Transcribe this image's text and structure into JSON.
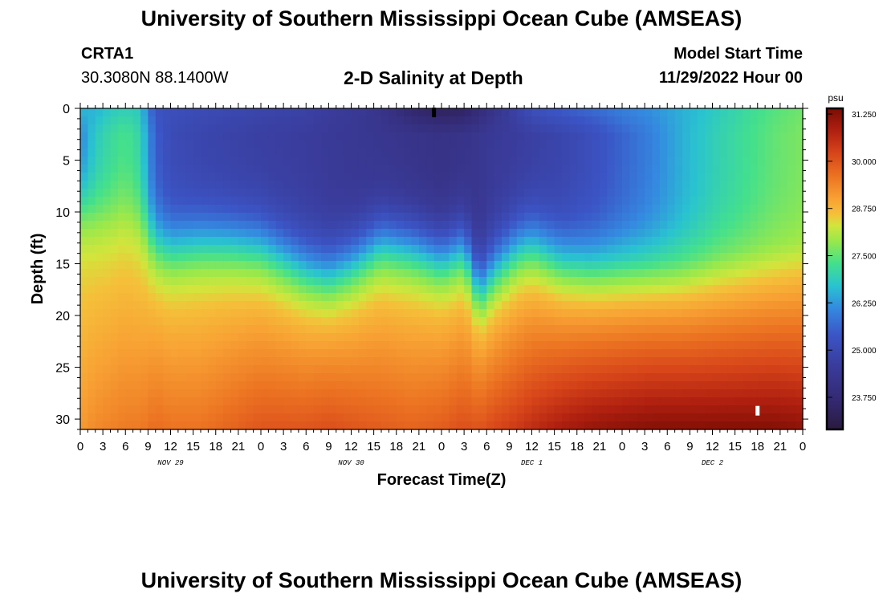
{
  "header": {
    "title": "University of Southern Mississippi Ocean Cube (AMSEAS)",
    "station": "CRTA1",
    "coordinates": "30.3080N  88.1400W",
    "plot_title": "2-D Salinity at Depth",
    "model_start_label": "Model Start Time",
    "model_start_value": "11/29/2022 Hour 00"
  },
  "footer": {
    "title": "University of Southern Mississippi Ocean Cube (AMSEAS)"
  },
  "chart_data": {
    "type": "heatmap",
    "title": "2-D Salinity at Depth",
    "xlabel": "Forecast Time(Z)",
    "ylabel": "Depth (ft)",
    "x_unit": "hours since 11/29/2022 00Z",
    "xlim": [
      0,
      96
    ],
    "ylim": [
      31,
      0
    ],
    "x_ticks": [
      0,
      3,
      6,
      9,
      12,
      15,
      18,
      21,
      24,
      27,
      30,
      33,
      36,
      39,
      42,
      45,
      48,
      51,
      54,
      57,
      60,
      63,
      66,
      69,
      72,
      75,
      78,
      81,
      84,
      87,
      90,
      93,
      96
    ],
    "x_tick_labels": [
      "0",
      "3",
      "6",
      "9",
      "12",
      "15",
      "18",
      "21",
      "0",
      "3",
      "6",
      "9",
      "12",
      "15",
      "18",
      "21",
      "0",
      "3",
      "6",
      "9",
      "12",
      "15",
      "18",
      "21",
      "0",
      "3",
      "6",
      "9",
      "12",
      "15",
      "18",
      "21",
      "0"
    ],
    "y_ticks": [
      0,
      5,
      10,
      15,
      20,
      25,
      30
    ],
    "y_tick_labels": [
      "0",
      "5",
      "10",
      "15",
      "20",
      "25",
      "30"
    ],
    "date_labels": [
      {
        "hour": 12,
        "text": "NOV 29"
      },
      {
        "hour": 36,
        "text": "NOV 30"
      },
      {
        "hour": 60,
        "text": "DEC 1"
      },
      {
        "hour": 84,
        "text": "DEC 2"
      }
    ],
    "colorbar": {
      "unit": "psu",
      "min": 22.9,
      "max": 31.4,
      "tick_values": [
        31.25,
        30.0,
        28.75,
        27.5,
        26.25,
        25.0,
        23.75
      ],
      "tick_labels": [
        "31.250",
        "30.000",
        "28.750",
        "27.500",
        "26.250",
        "25.000",
        "23.750"
      ],
      "colors": [
        {
          "value": 22.9,
          "color": "#2a1a3e"
        },
        {
          "value": 23.6,
          "color": "#33286e"
        },
        {
          "value": 24.6,
          "color": "#3a3c9c"
        },
        {
          "value": 25.4,
          "color": "#3b55c6"
        },
        {
          "value": 26.1,
          "color": "#3489e0"
        },
        {
          "value": 26.7,
          "color": "#29c3d0"
        },
        {
          "value": 27.3,
          "color": "#44e08c"
        },
        {
          "value": 27.9,
          "color": "#9ae84a"
        },
        {
          "value": 28.3,
          "color": "#d2e53c"
        },
        {
          "value": 28.6,
          "color": "#f5c03a"
        },
        {
          "value": 29.0,
          "color": "#f8a234"
        },
        {
          "value": 29.6,
          "color": "#ec7322"
        },
        {
          "value": 30.2,
          "color": "#d8461a"
        },
        {
          "value": 30.8,
          "color": "#b02010"
        },
        {
          "value": 31.4,
          "color": "#7a0d04"
        }
      ]
    },
    "profile_hours": [
      0,
      2,
      4,
      6,
      8,
      9,
      10,
      12,
      16,
      20,
      24,
      30,
      33,
      36,
      40,
      44,
      48,
      51,
      53,
      55,
      58,
      60,
      64,
      68,
      72,
      76,
      80,
      84,
      88,
      92,
      96
    ],
    "surface_salinity": [
      26.6,
      26.5,
      26.8,
      26.9,
      26.8,
      25.9,
      25.3,
      25.2,
      25.1,
      25.0,
      24.9,
      24.8,
      24.6,
      24.5,
      24.2,
      23.6,
      23.3,
      23.4,
      23.8,
      24.2,
      24.8,
      25.2,
      25.5,
      25.7,
      26.0,
      26.2,
      26.5,
      26.8,
      27.1,
      27.4,
      27.6
    ],
    "upper_salinity": [
      26.0,
      26.8,
      27.1,
      27.3,
      27.0,
      26.2,
      25.5,
      25.1,
      24.9,
      24.8,
      24.7,
      24.6,
      24.5,
      24.4,
      24.3,
      24.2,
      24.1,
      24.2,
      24.3,
      24.5,
      24.6,
      24.7,
      24.9,
      25.2,
      25.6,
      26.0,
      26.5,
      26.9,
      27.2,
      27.5,
      27.7
    ],
    "halocline_depth_ft": [
      9.0,
      9.6,
      9.5,
      9.0,
      10.0,
      11.5,
      12.5,
      13.0,
      12.5,
      12.5,
      12.8,
      15.0,
      15.5,
      14.5,
      12.5,
      13.0,
      14.0,
      13.0,
      17.0,
      15.0,
      13.0,
      12.5,
      14.0,
      14.5,
      14.5,
      14.5,
      14.5,
      14.0,
      13.5,
      13.0,
      12.5
    ],
    "bottom_salinity": [
      29.1,
      29.3,
      29.4,
      29.5,
      29.5,
      29.6,
      29.7,
      29.6,
      29.6,
      29.8,
      30.0,
      30.0,
      30.1,
      30.0,
      29.9,
      29.8,
      29.9,
      30.1,
      30.0,
      30.2,
      30.4,
      30.6,
      30.9,
      31.1,
      31.2,
      31.3,
      31.3,
      31.3,
      31.3,
      31.3,
      31.2
    ],
    "markers": [
      {
        "hour": 47,
        "depth_ft": 0.2,
        "color": "#000000"
      },
      {
        "hour": 90,
        "depth_ft": 29.0,
        "color": "#ffffff"
      }
    ]
  }
}
